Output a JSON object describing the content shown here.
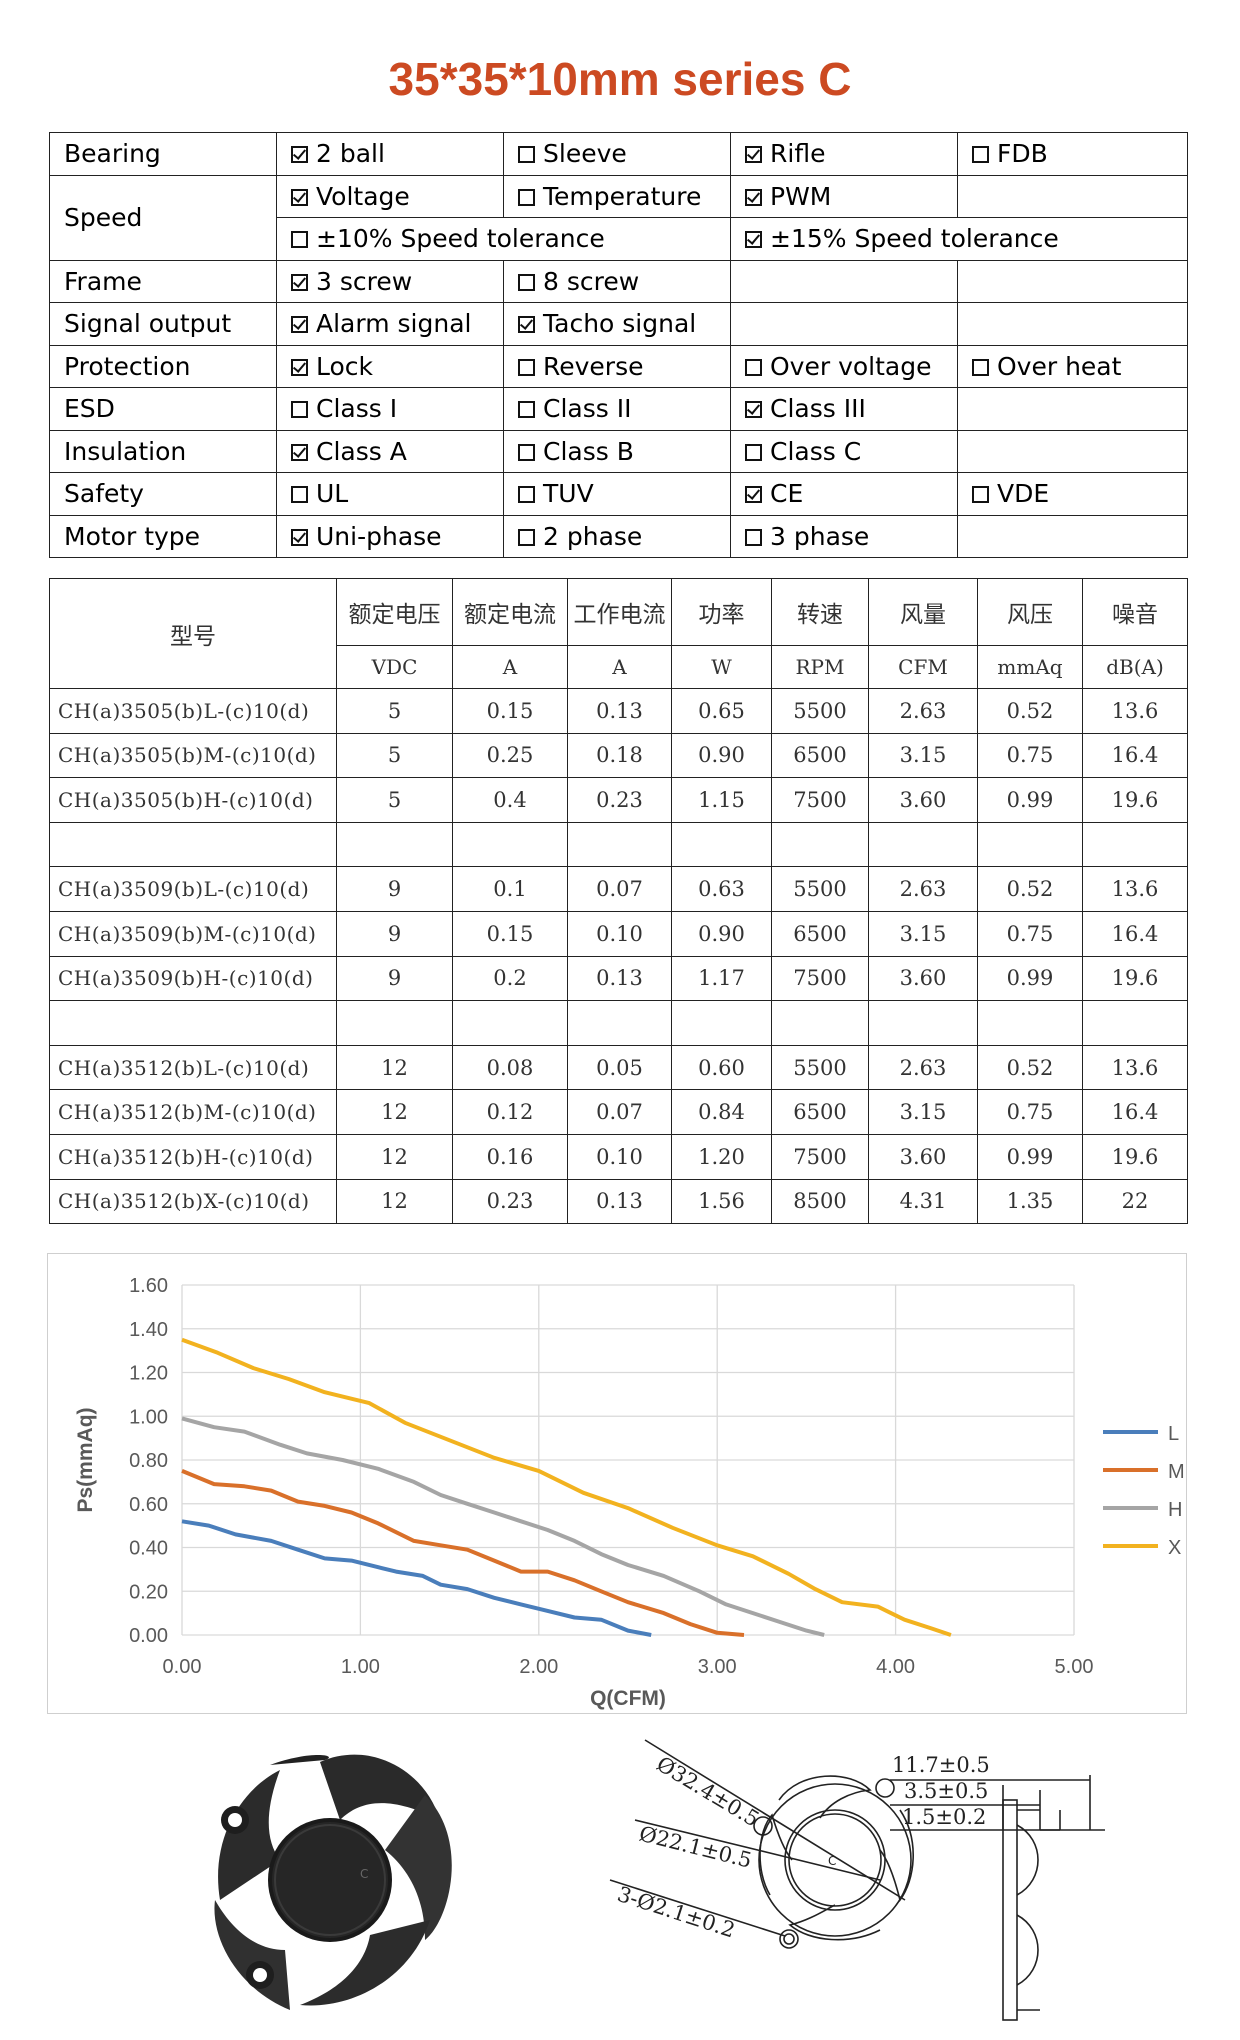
{
  "title": "35*35*10mm series C",
  "features": [
    {
      "label": "Bearing",
      "options": [
        {
          "text": "2 ball",
          "checked": true
        },
        {
          "text": "Sleeve",
          "checked": false
        },
        {
          "text": "Rifle",
          "checked": true
        },
        {
          "text": "FDB",
          "checked": false
        }
      ]
    },
    {
      "label": "Speed",
      "options": [
        {
          "text": "Voltage",
          "checked": true
        },
        {
          "text": "Temperature",
          "checked": false
        },
        {
          "text": "PWM",
          "checked": true
        }
      ]
    },
    {
      "label": "",
      "options": [
        {
          "text": "±10% Speed tolerance",
          "checked": false
        },
        {
          "text": "±15% Speed tolerance",
          "checked": true
        }
      ]
    },
    {
      "label": "Frame",
      "options": [
        {
          "text": "3 screw",
          "checked": true
        },
        {
          "text": "8 screw",
          "checked": false
        }
      ]
    },
    {
      "label": "Signal output",
      "options": [
        {
          "text": "Alarm signal",
          "checked": true
        },
        {
          "text": "Tacho signal",
          "checked": true
        }
      ]
    },
    {
      "label": "Protection",
      "options": [
        {
          "text": "Lock",
          "checked": true
        },
        {
          "text": "Reverse",
          "checked": false
        },
        {
          "text": "Over voltage",
          "checked": false
        },
        {
          "text": "Over heat",
          "checked": false
        }
      ]
    },
    {
      "label": "ESD",
      "options": [
        {
          "text": "Class I",
          "checked": false
        },
        {
          "text": "Class II",
          "checked": false
        },
        {
          "text": "Class III",
          "checked": true
        }
      ]
    },
    {
      "label": "Insulation",
      "options": [
        {
          "text": "Class A",
          "checked": true
        },
        {
          "text": "Class B",
          "checked": false
        },
        {
          "text": "Class C",
          "checked": false
        }
      ]
    },
    {
      "label": "Safety",
      "options": [
        {
          "text": "UL",
          "checked": false
        },
        {
          "text": "TUV",
          "checked": false
        },
        {
          "text": "CE",
          "checked": true
        },
        {
          "text": "VDE",
          "checked": false
        }
      ]
    },
    {
      "label": "Motor type",
      "options": [
        {
          "text": "Uni-phase",
          "checked": true
        },
        {
          "text": "2 phase",
          "checked": false
        },
        {
          "text": "3 phase",
          "checked": false
        }
      ]
    }
  ],
  "spec": {
    "model_header": "型号",
    "headers": [
      "额定电压",
      "额定电流",
      "工作电流",
      "功率",
      "转速",
      "风量",
      "风压",
      "噪音"
    ],
    "units": [
      "VDC",
      "A",
      "A",
      "W",
      "RPM",
      "CFM",
      "mmAq",
      "dB(A)"
    ],
    "groups": [
      [
        [
          "CH(a)3505(b)L-(c)10(d)",
          "5",
          "0.15",
          "0.13",
          "0.65",
          "5500",
          "2.63",
          "0.52",
          "13.6"
        ],
        [
          "CH(a)3505(b)M-(c)10(d)",
          "5",
          "0.25",
          "0.18",
          "0.90",
          "6500",
          "3.15",
          "0.75",
          "16.4"
        ],
        [
          "CH(a)3505(b)H-(c)10(d)",
          "5",
          "0.4",
          "0.23",
          "1.15",
          "7500",
          "3.60",
          "0.99",
          "19.6"
        ]
      ],
      [
        [
          "CH(a)3509(b)L-(c)10(d)",
          "9",
          "0.1",
          "0.07",
          "0.63",
          "5500",
          "2.63",
          "0.52",
          "13.6"
        ],
        [
          "CH(a)3509(b)M-(c)10(d)",
          "9",
          "0.15",
          "0.10",
          "0.90",
          "6500",
          "3.15",
          "0.75",
          "16.4"
        ],
        [
          "CH(a)3509(b)H-(c)10(d)",
          "9",
          "0.2",
          "0.13",
          "1.17",
          "7500",
          "3.60",
          "0.99",
          "19.6"
        ]
      ],
      [
        [
          "CH(a)3512(b)L-(c)10(d)",
          "12",
          "0.08",
          "0.05",
          "0.60",
          "5500",
          "2.63",
          "0.52",
          "13.6"
        ],
        [
          "CH(a)3512(b)M-(c)10(d)",
          "12",
          "0.12",
          "0.07",
          "0.84",
          "6500",
          "3.15",
          "0.75",
          "16.4"
        ],
        [
          "CH(a)3512(b)H-(c)10(d)",
          "12",
          "0.16",
          "0.10",
          "1.20",
          "7500",
          "3.60",
          "0.99",
          "19.6"
        ],
        [
          "CH(a)3512(b)X-(c)10(d)",
          "12",
          "0.23",
          "0.13",
          "1.56",
          "8500",
          "4.31",
          "1.35",
          "22"
        ]
      ]
    ]
  },
  "chart_data": {
    "type": "line",
    "title": "",
    "xlabel": "Q(CFM)",
    "ylabel": "Ps(mmAq)",
    "xlim": [
      0,
      5
    ],
    "ylim": [
      0,
      1.6
    ],
    "x_ticks": [
      "0.00",
      "1.00",
      "2.00",
      "3.00",
      "4.00",
      "5.00"
    ],
    "y_ticks": [
      "0.00",
      "0.20",
      "0.40",
      "0.60",
      "0.80",
      "1.00",
      "1.20",
      "1.40",
      "1.60"
    ],
    "grid": true,
    "legend": "right",
    "series": [
      {
        "name": "L",
        "color": "#4a7ebb",
        "points": [
          [
            0,
            0.52
          ],
          [
            0.15,
            0.5
          ],
          [
            0.3,
            0.46
          ],
          [
            0.5,
            0.43
          ],
          [
            0.65,
            0.39
          ],
          [
            0.8,
            0.35
          ],
          [
            0.95,
            0.34
          ],
          [
            1.1,
            0.31
          ],
          [
            1.2,
            0.29
          ],
          [
            1.35,
            0.27
          ],
          [
            1.45,
            0.23
          ],
          [
            1.6,
            0.21
          ],
          [
            1.75,
            0.17
          ],
          [
            1.9,
            0.14
          ],
          [
            2.05,
            0.11
          ],
          [
            2.2,
            0.08
          ],
          [
            2.35,
            0.07
          ],
          [
            2.5,
            0.02
          ],
          [
            2.63,
            0.0
          ]
        ]
      },
      {
        "name": "M",
        "color": "#d9702a",
        "points": [
          [
            0,
            0.75
          ],
          [
            0.18,
            0.69
          ],
          [
            0.35,
            0.68
          ],
          [
            0.5,
            0.66
          ],
          [
            0.65,
            0.61
          ],
          [
            0.8,
            0.59
          ],
          [
            0.95,
            0.56
          ],
          [
            1.1,
            0.51
          ],
          [
            1.3,
            0.43
          ],
          [
            1.45,
            0.41
          ],
          [
            1.6,
            0.39
          ],
          [
            1.75,
            0.34
          ],
          [
            1.9,
            0.29
          ],
          [
            2.05,
            0.29
          ],
          [
            2.2,
            0.25
          ],
          [
            2.35,
            0.2
          ],
          [
            2.5,
            0.15
          ],
          [
            2.7,
            0.1
          ],
          [
            2.85,
            0.05
          ],
          [
            3.0,
            0.01
          ],
          [
            3.15,
            0.0
          ]
        ]
      },
      {
        "name": "H",
        "color": "#a5a5a5",
        "points": [
          [
            0,
            0.99
          ],
          [
            0.18,
            0.95
          ],
          [
            0.35,
            0.93
          ],
          [
            0.55,
            0.87
          ],
          [
            0.7,
            0.83
          ],
          [
            0.9,
            0.8
          ],
          [
            1.1,
            0.76
          ],
          [
            1.3,
            0.7
          ],
          [
            1.45,
            0.64
          ],
          [
            1.6,
            0.6
          ],
          [
            1.75,
            0.56
          ],
          [
            1.9,
            0.52
          ],
          [
            2.05,
            0.48
          ],
          [
            2.2,
            0.43
          ],
          [
            2.35,
            0.37
          ],
          [
            2.5,
            0.32
          ],
          [
            2.7,
            0.27
          ],
          [
            2.9,
            0.2
          ],
          [
            3.05,
            0.14
          ],
          [
            3.2,
            0.1
          ],
          [
            3.35,
            0.06
          ],
          [
            3.5,
            0.02
          ],
          [
            3.6,
            0.0
          ]
        ]
      },
      {
        "name": "X",
        "color": "#f2b21f",
        "points": [
          [
            0,
            1.35
          ],
          [
            0.2,
            1.29
          ],
          [
            0.4,
            1.22
          ],
          [
            0.6,
            1.17
          ],
          [
            0.8,
            1.11
          ],
          [
            1.05,
            1.06
          ],
          [
            1.25,
            0.97
          ],
          [
            1.5,
            0.89
          ],
          [
            1.75,
            0.81
          ],
          [
            2.0,
            0.75
          ],
          [
            2.25,
            0.65
          ],
          [
            2.5,
            0.58
          ],
          [
            2.75,
            0.49
          ],
          [
            3.0,
            0.41
          ],
          [
            3.2,
            0.36
          ],
          [
            3.4,
            0.28
          ],
          [
            3.55,
            0.21
          ],
          [
            3.7,
            0.15
          ],
          [
            3.9,
            0.13
          ],
          [
            4.05,
            0.07
          ],
          [
            4.2,
            0.03
          ],
          [
            4.31,
            0.0
          ]
        ]
      }
    ]
  },
  "drawing": {
    "dim_d1": "Ø32.4±0.5",
    "dim_d2": "Ø22.1±0.5",
    "dim_d3": "3-Ø2.1±0.2",
    "dim_h1": "11.7±0.5",
    "dim_h2": "3.5±0.5",
    "dim_h3": "1.5±0.2",
    "hub_mark": "C"
  }
}
